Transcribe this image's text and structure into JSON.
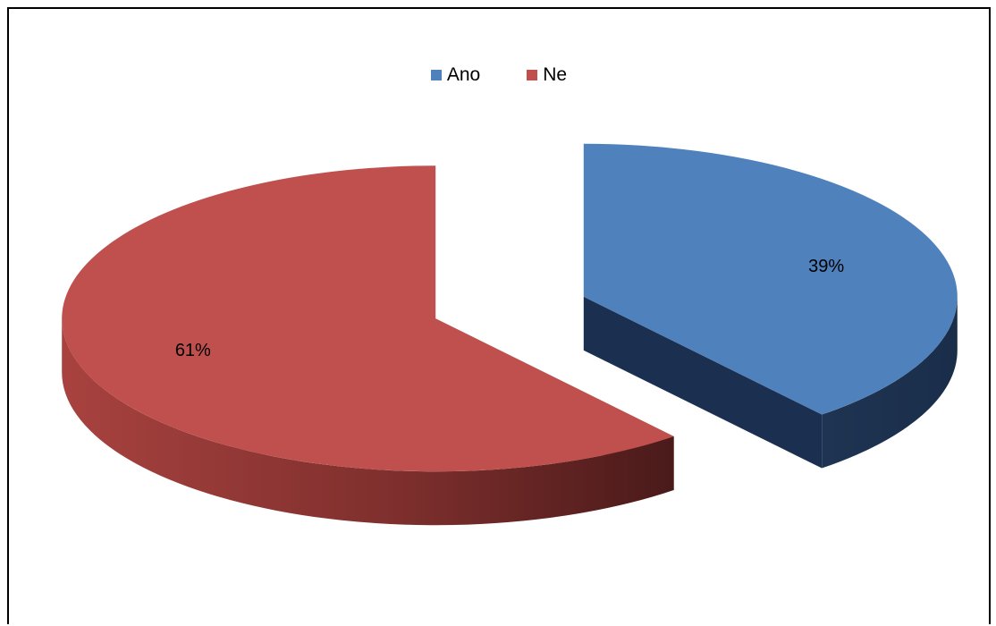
{
  "chart_data": {
    "type": "pie",
    "style": "3d-exploded",
    "categories": [
      "Ano",
      "Ne"
    ],
    "values": [
      39,
      61
    ],
    "value_labels": [
      "39%",
      "61%"
    ],
    "colors": [
      "#4F81BD",
      "#C0504D"
    ],
    "legend": "top-center",
    "title": ""
  }
}
